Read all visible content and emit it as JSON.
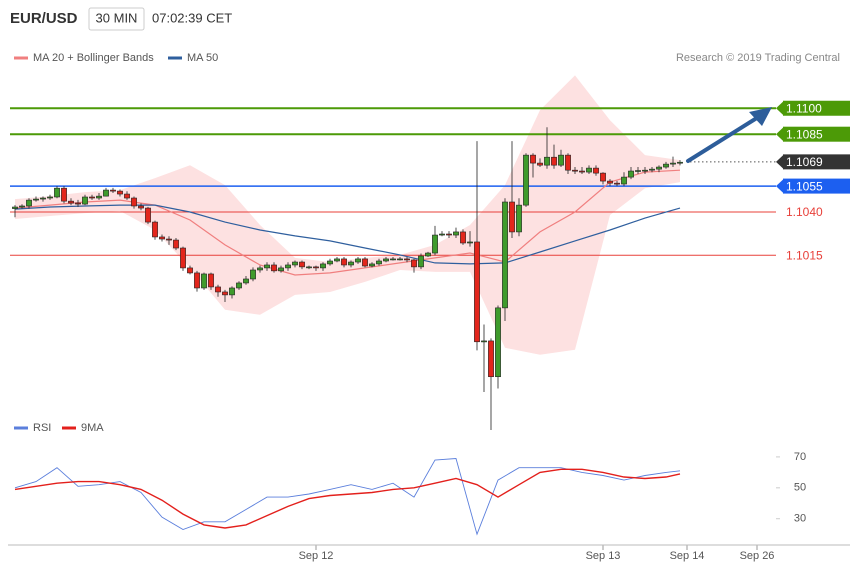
{
  "header": {
    "symbol": "EUR/USD",
    "interval": "30 MIN",
    "time": "07:02:39 CET"
  },
  "chart_data": [
    {
      "type": "candlestick",
      "credit": "Research © 2019 Trading Central",
      "xlim": [
        -1,
        118
      ],
      "ylim": [
        1.0914,
        1.1125
      ],
      "up_color": "#3f9b2c",
      "down_color": "#e3261c",
      "band_color": "#fde1e1",
      "open": [
        1.1042,
        1.10429,
        1.10435,
        1.10469,
        1.10475,
        1.10481,
        1.10487,
        1.10538,
        1.10463,
        1.10452,
        1.10446,
        1.10487,
        1.10481,
        1.10492,
        1.10527,
        1.10521,
        1.10504,
        1.10481,
        1.10435,
        1.10423,
        1.10342,
        1.10256,
        1.10244,
        1.10238,
        1.10192,
        1.10077,
        1.10048,
        1.09961,
        1.10042,
        1.09967,
        1.09938,
        1.09921,
        1.09961,
        1.0999,
        1.10013,
        1.10065,
        1.10077,
        1.10094,
        1.1006,
        1.10077,
        1.10094,
        1.10111,
        1.10083,
        1.10083,
        1.10077,
        1.101,
        1.10117,
        1.10129,
        1.10094,
        1.10111,
        1.10129,
        1.10088,
        1.101,
        1.10117,
        1.10129,
        1.10129,
        1.10129,
        1.10123,
        1.10083,
        1.10146,
        1.10163,
        1.10267,
        1.10273,
        1.10267,
        1.10285,
        1.10221,
        1.10227,
        1.0965,
        1.09655,
        1.09448,
        1.09846,
        1.10458,
        1.10285,
        1.1044,
        1.10729,
        1.10683,
        1.10671,
        1.10717,
        1.10671,
        1.10729,
        1.10642,
        1.10637,
        1.10631,
        1.10654,
        1.10625,
        1.10579,
        1.10567,
        1.10562,
        1.10602,
        1.10637,
        1.1064,
        1.10642,
        1.10648,
        1.1066,
        1.10677,
        1.10683
      ],
      "high": [
        1.1044,
        1.10445,
        1.1048,
        1.1049,
        1.1049,
        1.105,
        1.1055,
        1.1055,
        1.1048,
        1.1047,
        1.105,
        1.105,
        1.1051,
        1.1054,
        1.1054,
        1.1053,
        1.1052,
        1.1049,
        1.1045,
        1.1043,
        1.1035,
        1.1027,
        1.1026,
        1.1025,
        1.102,
        1.1009,
        1.1006,
        1.1005,
        1.1005,
        1.0998,
        1.0995,
        1.0997,
        1.1,
        1.1003,
        1.1008,
        1.1009,
        1.1011,
        1.1011,
        1.1009,
        1.1011,
        1.1012,
        1.1012,
        1.1009,
        1.1009,
        1.1011,
        1.1013,
        1.1014,
        1.1014,
        1.1012,
        1.1014,
        1.1014,
        1.1011,
        1.1013,
        1.1014,
        1.1014,
        1.1014,
        1.1014,
        1.1013,
        1.1016,
        1.1017,
        1.1032,
        1.1029,
        1.1029,
        1.1031,
        1.103,
        1.1029,
        1.1081,
        1.0975,
        1.0967,
        1.0986,
        1.1048,
        1.1081,
        1.1048,
        1.1074,
        1.1074,
        1.1071,
        1.1089,
        1.1079,
        1.1076,
        1.1074,
        1.1066,
        1.1066,
        1.1067,
        1.1067,
        1.1063,
        1.1059,
        1.1058,
        1.1063,
        1.1066,
        1.1066,
        1.1066,
        1.1066,
        1.1067,
        1.1069,
        1.1072,
        1.107
      ],
      "low": [
        1.1037,
        1.1042,
        1.1042,
        1.1046,
        1.1046,
        1.1047,
        1.1048,
        1.1045,
        1.1044,
        1.1043,
        1.1044,
        1.1047,
        1.1047,
        1.1049,
        1.1051,
        1.1049,
        1.1047,
        1.1042,
        1.1041,
        1.1033,
        1.1024,
        1.1023,
        1.1021,
        1.1018,
        1.1006,
        1.1004,
        1.0994,
        1.0995,
        1.0995,
        1.0991,
        1.0988,
        1.099,
        1.0995,
        1.0998,
        1.1,
        1.1005,
        1.1006,
        1.1005,
        1.1005,
        1.1006,
        1.1008,
        1.1007,
        1.1007,
        1.1006,
        1.1006,
        1.1009,
        1.1011,
        1.1008,
        1.1008,
        1.101,
        1.1008,
        1.1008,
        1.1009,
        1.1011,
        1.1012,
        1.1012,
        1.1011,
        1.1005,
        1.1007,
        1.1014,
        1.1015,
        1.1026,
        1.1025,
        1.1025,
        1.1021,
        1.102,
        1.096,
        1.0936,
        1.0914,
        1.0938,
        1.0977,
        1.1025,
        1.1026,
        1.1043,
        1.106,
        1.1066,
        1.1065,
        1.1065,
        1.1066,
        1.1062,
        1.1062,
        1.1062,
        1.1062,
        1.1061,
        1.1056,
        1.1055,
        1.1055,
        1.1055,
        1.1059,
        1.1062,
        1.1062,
        1.1063,
        1.1063,
        1.1065,
        1.1066,
        1.1067
      ],
      "close": [
        1.10429,
        1.10435,
        1.10469,
        1.10475,
        1.10481,
        1.10487,
        1.10538,
        1.10463,
        1.10452,
        1.10446,
        1.10487,
        1.10481,
        1.10492,
        1.10527,
        1.10521,
        1.10504,
        1.10481,
        1.10435,
        1.10423,
        1.10342,
        1.10256,
        1.10244,
        1.10238,
        1.10192,
        1.10077,
        1.10048,
        1.09961,
        1.10042,
        1.09967,
        1.09938,
        1.09921,
        1.09961,
        1.0999,
        1.10013,
        1.10065,
        1.10077,
        1.10094,
        1.1006,
        1.10077,
        1.10094,
        1.10111,
        1.10083,
        1.10083,
        1.10077,
        1.101,
        1.10117,
        1.10129,
        1.10094,
        1.10111,
        1.10129,
        1.10088,
        1.101,
        1.10117,
        1.10129,
        1.10129,
        1.10129,
        1.10123,
        1.10083,
        1.10146,
        1.10163,
        1.10267,
        1.10273,
        1.10267,
        1.10285,
        1.10221,
        1.10227,
        1.0965,
        1.09655,
        1.09448,
        1.09846,
        1.10458,
        1.10285,
        1.1044,
        1.10729,
        1.10683,
        1.10671,
        1.10717,
        1.10671,
        1.10729,
        1.10642,
        1.10637,
        1.10631,
        1.10654,
        1.10625,
        1.10579,
        1.10567,
        1.10562,
        1.10602,
        1.10637,
        1.1064,
        1.10642,
        1.10648,
        1.1066,
        1.10677,
        1.10683,
        1.10688
      ],
      "series": [
        {
          "name": "MA 20 + Bollinger Bands",
          "color": "#f07f7f",
          "x": [
            0,
            5,
            10,
            15,
            20,
            25,
            30,
            35,
            40,
            45,
            50,
            55,
            60,
            65,
            70,
            75,
            80,
            85,
            90,
            95
          ],
          "values": [
            1.10423,
            1.1044,
            1.10458,
            1.10469,
            1.1044,
            1.10354,
            1.1021,
            1.10094,
            1.10036,
            1.10048,
            1.10077,
            1.10106,
            1.10135,
            1.10163,
            1.10111,
            1.10285,
            1.104,
            1.10573,
            1.10631,
            1.10642
          ],
          "upper": [
            1.10475,
            1.10492,
            1.10515,
            1.10527,
            1.10596,
            1.10671,
            1.10556,
            1.10325,
            1.10135,
            1.10111,
            1.10135,
            1.10152,
            1.1021,
            1.10325,
            1.10556,
            1.10989,
            1.1119,
            1.10931,
            1.10729,
            1.107
          ],
          "lower": [
            1.1036,
            1.10377,
            1.10394,
            1.10406,
            1.10296,
            1.10077,
            1.09835,
            1.09806,
            1.09921,
            1.09938,
            1.09996,
            1.10065,
            1.10054,
            1.10054,
            1.09615,
            1.09575,
            1.09604,
            1.10383,
            1.10538,
            1.10573
          ]
        },
        {
          "name": "MA 50",
          "color": "#2f5f9e",
          "x": [
            0,
            5,
            10,
            15,
            20,
            25,
            30,
            35,
            40,
            45,
            50,
            55,
            60,
            65,
            70,
            75,
            80,
            85,
            90,
            95
          ],
          "values": [
            1.10417,
            1.10429,
            1.10435,
            1.1044,
            1.1044,
            1.104,
            1.10342,
            1.10296,
            1.10262,
            1.10233,
            1.10192,
            1.10152,
            1.10106,
            1.101,
            1.10106,
            1.10169,
            1.10233,
            1.10296,
            1.10365,
            1.10423
          ]
        }
      ],
      "levels": [
        {
          "value": 1.11,
          "label": "1.1100",
          "color": "#4c9a07",
          "style": "box"
        },
        {
          "value": 1.1085,
          "label": "1.1085",
          "color": "#4c9a07",
          "style": "box"
        },
        {
          "value": 1.1069,
          "label": "1.1069",
          "color": "#333333",
          "style": "current"
        },
        {
          "value": 1.1055,
          "label": "1.1055",
          "color": "#1c5ff0",
          "style": "box"
        },
        {
          "value": 1.104,
          "label": "1.1040",
          "color": "#e8403a",
          "style": "text"
        },
        {
          "value": 1.1015,
          "label": "1.1015",
          "color": "#e8403a",
          "style": "text"
        }
      ]
    },
    {
      "type": "line",
      "xlim": [
        -1,
        118
      ],
      "ylim": [
        13,
        90
      ],
      "yticks": [
        30,
        50,
        70
      ],
      "xticks": [
        {
          "value": 43,
          "label": "Sep 12"
        },
        {
          "value": 84,
          "label": "Sep 13"
        },
        {
          "value": 96,
          "label": "Sep 14"
        },
        {
          "value": 106,
          "label": "Sep 26"
        }
      ],
      "series": [
        {
          "name": "RSI",
          "color": "#5b7fdc",
          "x": [
            0,
            3,
            6,
            9,
            12,
            15,
            18,
            21,
            24,
            27,
            30,
            33,
            36,
            39,
            42,
            45,
            48,
            51,
            54,
            57,
            60,
            63,
            66,
            69,
            72,
            75,
            78,
            81,
            84,
            87,
            90,
            93,
            95
          ],
          "values": [
            50,
            54,
            63,
            51,
            52,
            54,
            47,
            31,
            23,
            28,
            28,
            36,
            44,
            44,
            46,
            49,
            52,
            49,
            53,
            44,
            68,
            69,
            20,
            55,
            63,
            63,
            63,
            60,
            58,
            55,
            58,
            60,
            61
          ]
        },
        {
          "name": "9MA",
          "color": "#e3201c",
          "x": [
            0,
            3,
            6,
            9,
            12,
            15,
            18,
            21,
            24,
            27,
            30,
            33,
            36,
            39,
            42,
            45,
            48,
            51,
            54,
            57,
            60,
            63,
            66,
            69,
            72,
            75,
            78,
            81,
            84,
            87,
            90,
            93,
            95
          ],
          "values": [
            49,
            51,
            53,
            54,
            54,
            52,
            49,
            42,
            33,
            26,
            24,
            26,
            32,
            38,
            43,
            45,
            46,
            47,
            49,
            50,
            53,
            56,
            52,
            44,
            52,
            60,
            62,
            62,
            60,
            57,
            56,
            57,
            59
          ]
        }
      ]
    }
  ]
}
